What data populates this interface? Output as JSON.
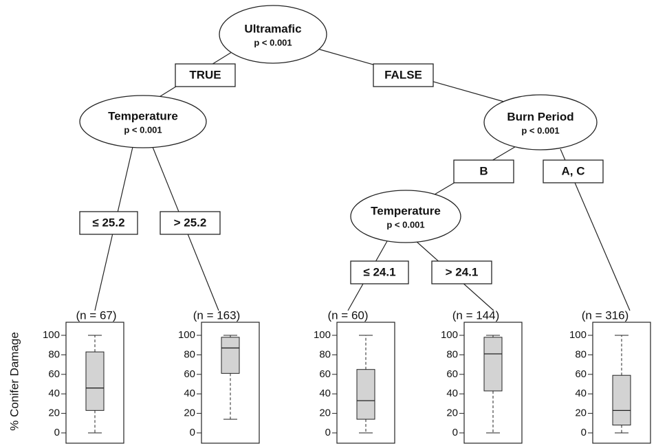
{
  "y_axis_label": "% Conifer Damage",
  "nodes": [
    {
      "label": "Ultramafic",
      "p": "p < 0.001"
    },
    {
      "label": "Temperature",
      "p": "p < 0.001"
    },
    {
      "label": "Burn Period",
      "p": "p < 0.001"
    },
    {
      "label": "Temperature",
      "p": "p < 0.001"
    }
  ],
  "edges": [
    {
      "label": "TRUE"
    },
    {
      "label": "FALSE"
    },
    {
      "label": "≤ 25.2"
    },
    {
      "label": "> 25.2"
    },
    {
      "label": "B"
    },
    {
      "label": "A, C"
    },
    {
      "label": "≤ 24.1"
    },
    {
      "label": "> 24.1"
    }
  ],
  "yticks": [
    0,
    20,
    40,
    60,
    80,
    100
  ],
  "ylim": [
    0,
    100
  ],
  "leaves": [
    {
      "n": "(n = 67)",
      "min": 0,
      "q1": 23,
      "median": 46,
      "q3": 83,
      "max": 100
    },
    {
      "n": "(n = 163)",
      "min": 14,
      "q1": 61,
      "median": 87,
      "q3": 98,
      "max": 100
    },
    {
      "n": "(n = 60)",
      "min": 0,
      "q1": 14,
      "median": 33,
      "q3": 65,
      "max": 100
    },
    {
      "n": "(n = 144)",
      "min": 0,
      "q1": 43,
      "median": 81,
      "q3": 98,
      "max": 100
    },
    {
      "n": "(n = 316)",
      "min": 0,
      "q1": 8,
      "median": 23,
      "q3": 59,
      "max": 100
    }
  ]
}
